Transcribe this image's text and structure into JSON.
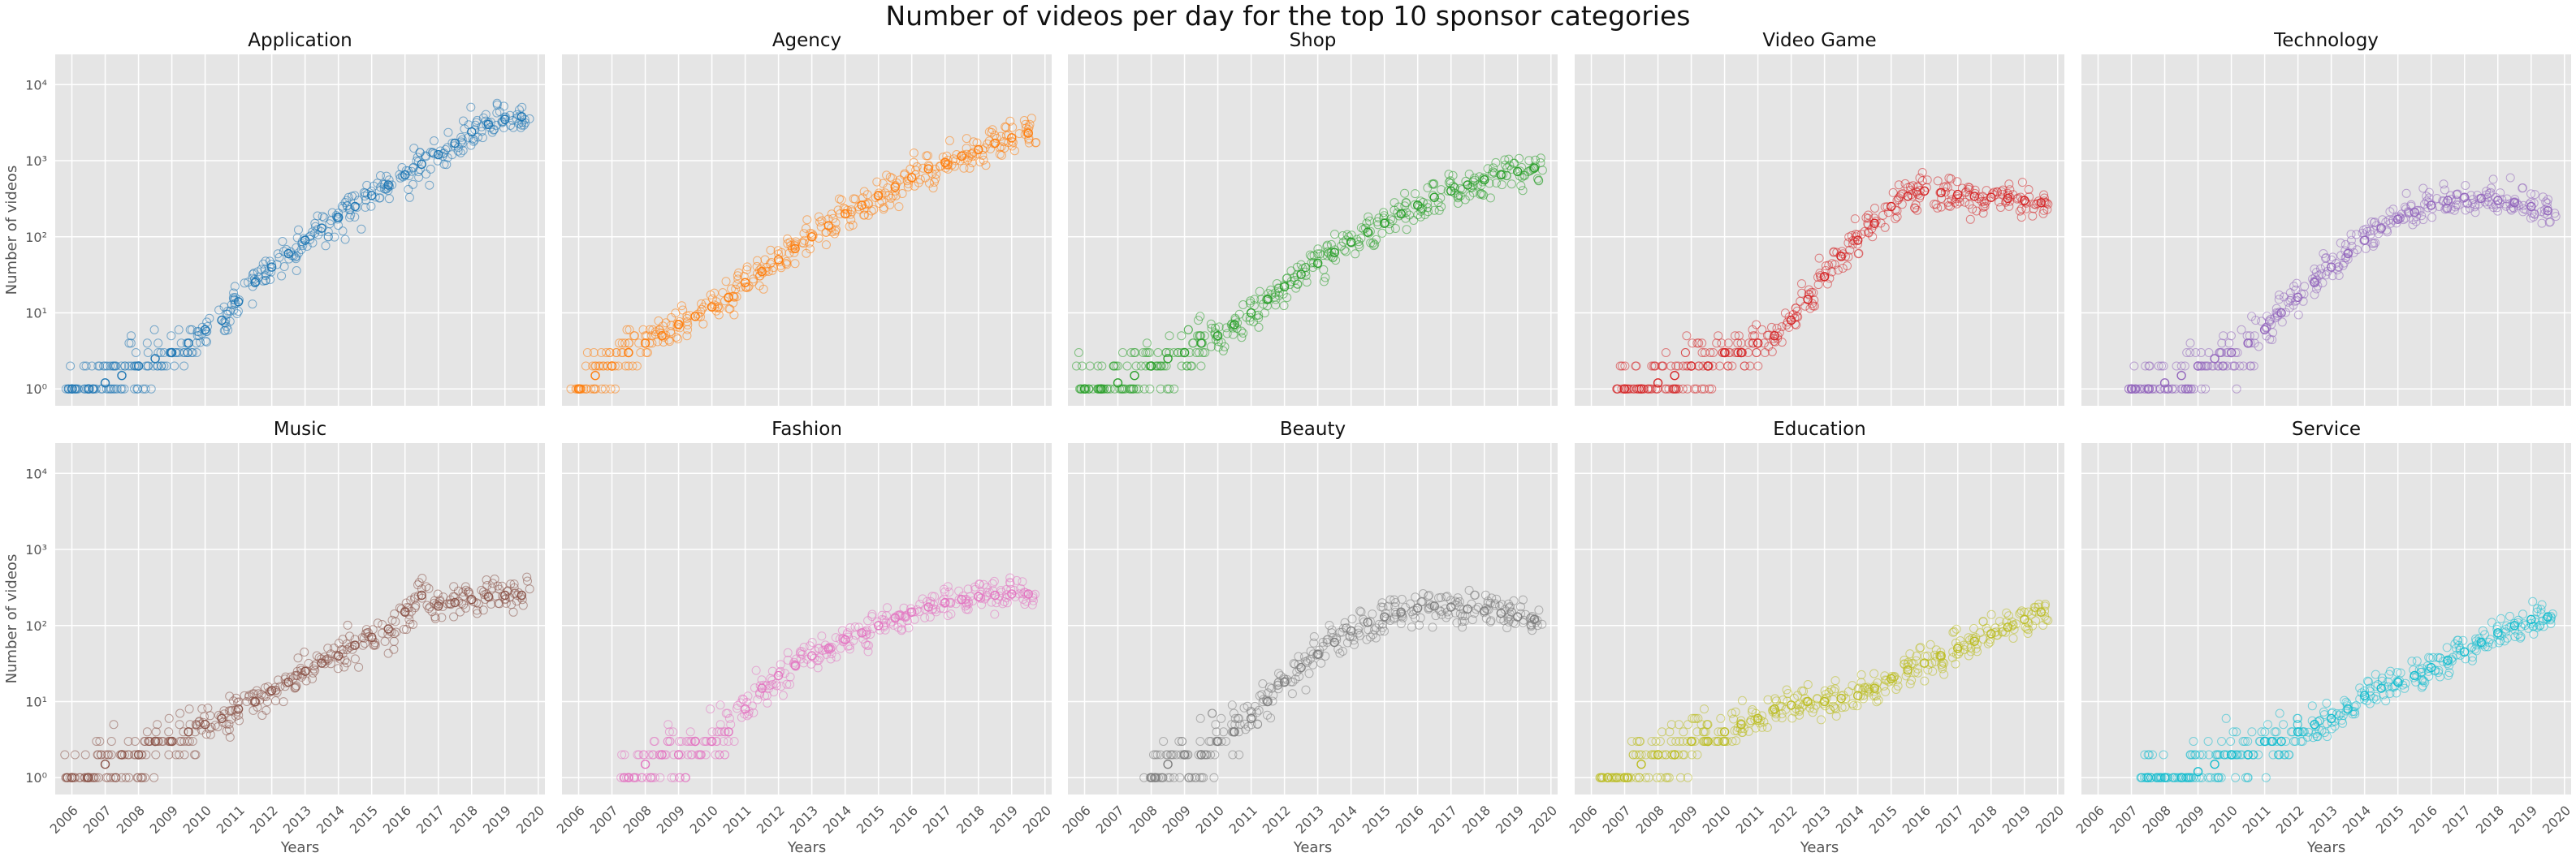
{
  "figure": {
    "title": "Number of videos per day for the top 10 sponsor categories",
    "background": "#e5e5e5",
    "grid_color": "#ffffff"
  },
  "chart_data": [
    {
      "type": "scatter",
      "title": "Application",
      "color": "#1f77b4",
      "xlabel": "",
      "ylabel": "Number of videos",
      "yscale": "log",
      "xlim": [
        2005.5,
        2020.2
      ],
      "ylim": [
        0.6,
        25000
      ],
      "grid": true,
      "x": [
        2006,
        2006.5,
        2007,
        2007.5,
        2008,
        2008.5,
        2009,
        2009.5,
        2010,
        2010.5,
        2011,
        2011.5,
        2012,
        2012.5,
        2013,
        2013.5,
        2014,
        2014.5,
        2015,
        2015.5,
        2016,
        2016.5,
        2017,
        2017.5,
        2018,
        2018.5,
        2019,
        2019.5
      ],
      "y": [
        1,
        1,
        1.2,
        1.5,
        2,
        2.5,
        3,
        4,
        6,
        8,
        14,
        25,
        40,
        60,
        90,
        130,
        180,
        250,
        350,
        480,
        650,
        900,
        1200,
        1700,
        2400,
        3000,
        3500,
        3800
      ]
    },
    {
      "type": "scatter",
      "title": "Agency",
      "color": "#ff7f0e",
      "xlabel": "",
      "ylabel": "",
      "yscale": "log",
      "xlim": [
        2005.5,
        2020.2
      ],
      "ylim": [
        0.6,
        25000
      ],
      "grid": true,
      "x": [
        2006,
        2006.5,
        2007,
        2007.5,
        2008,
        2008.5,
        2009,
        2009.5,
        2010,
        2010.5,
        2011,
        2011.5,
        2012,
        2012.5,
        2013,
        2013.5,
        2014,
        2014.5,
        2015,
        2015.5,
        2016,
        2016.5,
        2017,
        2017.5,
        2018,
        2018.5,
        2019,
        2019.5
      ],
      "y": [
        1,
        1.5,
        2,
        3,
        4,
        5,
        7,
        9,
        12,
        16,
        25,
        35,
        50,
        70,
        100,
        140,
        200,
        260,
        350,
        450,
        600,
        780,
        950,
        1150,
        1400,
        1700,
        2000,
        2300
      ]
    },
    {
      "type": "scatter",
      "title": "Shop",
      "color": "#2ca02c",
      "xlabel": "",
      "ylabel": "",
      "yscale": "log",
      "xlim": [
        2005.5,
        2020.2
      ],
      "ylim": [
        0.6,
        25000
      ],
      "grid": true,
      "x": [
        2006,
        2006.5,
        2007,
        2007.5,
        2008,
        2008.5,
        2009,
        2009.5,
        2010,
        2010.5,
        2011,
        2011.5,
        2012,
        2012.5,
        2013,
        2013.5,
        2014,
        2014.5,
        2015,
        2015.5,
        2016,
        2016.5,
        2017,
        2017.5,
        2018,
        2018.5,
        2019,
        2019.5
      ],
      "y": [
        1,
        1,
        1.2,
        1.5,
        2,
        2.5,
        3,
        4,
        5,
        7,
        10,
        15,
        22,
        32,
        45,
        62,
        85,
        115,
        150,
        200,
        260,
        330,
        400,
        480,
        560,
        650,
        720,
        800
      ]
    },
    {
      "type": "scatter",
      "title": "Video Game",
      "color": "#d62728",
      "xlabel": "",
      "ylabel": "",
      "yscale": "log",
      "xlim": [
        2005.5,
        2020.2
      ],
      "ylim": [
        0.6,
        25000
      ],
      "grid": true,
      "x": [
        2007,
        2007.5,
        2008,
        2008.5,
        2009,
        2009.5,
        2010,
        2010.5,
        2011,
        2011.5,
        2012,
        2012.5,
        2013,
        2013.5,
        2014,
        2014.5,
        2015,
        2015.5,
        2016,
        2016.5,
        2017,
        2017.5,
        2018,
        2018.5,
        2019,
        2019.5
      ],
      "y": [
        1,
        1,
        1.2,
        1.5,
        2,
        2,
        3,
        3,
        4,
        5,
        8,
        15,
        30,
        55,
        90,
        150,
        250,
        340,
        400,
        380,
        360,
        340,
        330,
        320,
        300,
        280
      ]
    },
    {
      "type": "scatter",
      "title": "Technology",
      "color": "#9467bd",
      "xlabel": "",
      "ylabel": "",
      "yscale": "log",
      "xlim": [
        2005.5,
        2020.2
      ],
      "ylim": [
        0.6,
        25000
      ],
      "grid": true,
      "x": [
        2007,
        2007.5,
        2008,
        2008.5,
        2009,
        2009.5,
        2010,
        2010.5,
        2011,
        2011.5,
        2012,
        2012.5,
        2013,
        2013.5,
        2014,
        2014.5,
        2015,
        2015.5,
        2016,
        2016.5,
        2017,
        2017.5,
        2018,
        2018.5,
        2019,
        2019.5
      ],
      "y": [
        1,
        1,
        1.2,
        1.5,
        2,
        2.5,
        3,
        4,
        6,
        10,
        16,
        25,
        40,
        60,
        90,
        130,
        170,
        210,
        260,
        300,
        330,
        320,
        300,
        280,
        250,
        220
      ]
    },
    {
      "type": "scatter",
      "title": "Music",
      "color": "#8c564b",
      "xlabel": "Years",
      "ylabel": "Number of videos",
      "yscale": "log",
      "xlim": [
        2005.5,
        2020.2
      ],
      "ylim": [
        0.6,
        25000
      ],
      "grid": true,
      "x": [
        2006,
        2006.5,
        2007,
        2007.5,
        2008,
        2008.5,
        2009,
        2009.5,
        2010,
        2010.5,
        2011,
        2011.5,
        2012,
        2012.5,
        2013,
        2013.5,
        2014,
        2014.5,
        2015,
        2015.5,
        2016,
        2016.5,
        2017,
        2017.5,
        2018,
        2018.5,
        2019,
        2019.5
      ],
      "y": [
        1,
        1,
        1.5,
        2,
        2,
        3,
        3,
        4,
        5,
        6,
        8,
        10,
        14,
        18,
        25,
        32,
        40,
        55,
        70,
        90,
        150,
        250,
        180,
        200,
        220,
        240,
        250,
        250
      ]
    },
    {
      "type": "scatter",
      "title": "Fashion",
      "color": "#e377c2",
      "xlabel": "Years",
      "ylabel": "",
      "yscale": "log",
      "xlim": [
        2005.5,
        2020.2
      ],
      "ylim": [
        0.6,
        25000
      ],
      "grid": true,
      "x": [
        2007.5,
        2008,
        2008.5,
        2009,
        2009.5,
        2010,
        2010.5,
        2011,
        2011.5,
        2012,
        2012.5,
        2013,
        2013.5,
        2014,
        2014.5,
        2015,
        2015.5,
        2016,
        2016.5,
        2017,
        2017.5,
        2018,
        2018.5,
        2019,
        2019.5
      ],
      "y": [
        1,
        1.5,
        2,
        2,
        3,
        3,
        4,
        8,
        15,
        22,
        30,
        40,
        50,
        65,
        80,
        100,
        125,
        150,
        175,
        200,
        220,
        240,
        250,
        260,
        260
      ]
    },
    {
      "type": "scatter",
      "title": "Beauty",
      "color": "#7f7f7f",
      "xlabel": "Years",
      "ylabel": "",
      "yscale": "log",
      "xlim": [
        2005.5,
        2020.2
      ],
      "ylim": [
        0.6,
        25000
      ],
      "grid": true,
      "x": [
        2008,
        2008.5,
        2009,
        2009.5,
        2010,
        2010.5,
        2011,
        2011.5,
        2012,
        2012.5,
        2013,
        2013.5,
        2014,
        2014.5,
        2015,
        2015.5,
        2016,
        2016.5,
        2017,
        2017.5,
        2018,
        2018.5,
        2019,
        2019.5
      ],
      "y": [
        1,
        1.5,
        2,
        2,
        3,
        4,
        6,
        10,
        18,
        28,
        42,
        60,
        85,
        110,
        130,
        150,
        170,
        180,
        175,
        165,
        155,
        145,
        130,
        120
      ]
    },
    {
      "type": "scatter",
      "title": "Education",
      "color": "#bcbd22",
      "xlabel": "Years",
      "ylabel": "",
      "yscale": "log",
      "xlim": [
        2005.5,
        2020.2
      ],
      "ylim": [
        0.6,
        25000
      ],
      "grid": true,
      "x": [
        2006.5,
        2007,
        2007.5,
        2008,
        2008.5,
        2009,
        2009.5,
        2010,
        2010.5,
        2011,
        2011.5,
        2012,
        2012.5,
        2013,
        2013.5,
        2014,
        2014.5,
        2015,
        2015.5,
        2016,
        2016.5,
        2017,
        2017.5,
        2018,
        2018.5,
        2019,
        2019.5
      ],
      "y": [
        1,
        1,
        1.5,
        2,
        2,
        3,
        3,
        4,
        5,
        6,
        8,
        9,
        10,
        10,
        11,
        12,
        15,
        20,
        26,
        32,
        40,
        50,
        62,
        78,
        95,
        120,
        150
      ]
    },
    {
      "type": "scatter",
      "title": "Service",
      "color": "#17becf",
      "xlabel": "Years",
      "ylabel": "",
      "yscale": "log",
      "xlim": [
        2005.5,
        2020.2
      ],
      "ylim": [
        0.6,
        25000
      ],
      "grid": true,
      "x": [
        2007.5,
        2008,
        2008.5,
        2009,
        2009.5,
        2010,
        2010.5,
        2011,
        2011.5,
        2012,
        2012.5,
        2013,
        2013.5,
        2014,
        2014.5,
        2015,
        2015.5,
        2016,
        2016.5,
        2017,
        2017.5,
        2018,
        2018.5,
        2019,
        2019.5
      ],
      "y": [
        1,
        1,
        1,
        1.2,
        1.5,
        2,
        2,
        3,
        3,
        4,
        5,
        6,
        8,
        12,
        15,
        18,
        22,
        28,
        35,
        45,
        60,
        80,
        100,
        120,
        130
      ]
    }
  ],
  "axes": {
    "x_ticks": [
      "2006",
      "2007",
      "2008",
      "2009",
      "2010",
      "2011",
      "2012",
      "2013",
      "2014",
      "2015",
      "2016",
      "2017",
      "2018",
      "2019",
      "2020"
    ],
    "y_ticks": [
      {
        "label": "10⁰",
        "value": 1
      },
      {
        "label": "10¹",
        "value": 10
      },
      {
        "label": "10²",
        "value": 100
      },
      {
        "label": "10³",
        "value": 1000
      },
      {
        "label": "10⁴",
        "value": 10000
      }
    ]
  }
}
